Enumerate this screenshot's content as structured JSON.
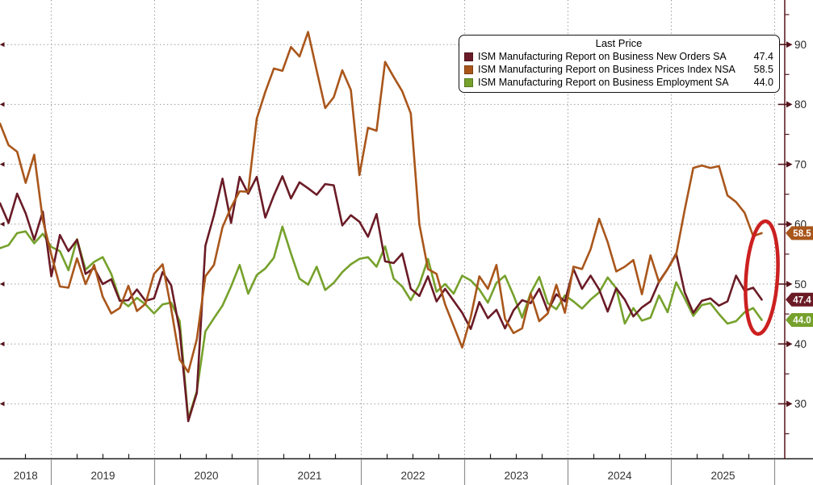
{
  "window": {
    "background": "#ffffff"
  },
  "legend": {
    "title": "Last Price",
    "items": [
      {
        "label": "ISM Manufacturing Report on Business New Orders SA",
        "value": "47.4",
        "color": "#6a1b26"
      },
      {
        "label": "ISM Manufacturing Report on Business Prices Index NSA",
        "value": "58.5",
        "color": "#a9561b"
      },
      {
        "label": "ISM Manufacturing Report on Business Employment SA",
        "value": "44.0",
        "color": "#76a12c"
      }
    ]
  },
  "y_axis": {
    "side": "right",
    "ticks": [
      90,
      80,
      70,
      60,
      50,
      40,
      30
    ],
    "minor_step": 5,
    "spine_color": "#55141c",
    "label_color": "#262626"
  },
  "x_axis": {
    "year_labels": [
      "2018",
      "2019",
      "2020",
      "2021",
      "2022",
      "2023",
      "2024",
      "2025"
    ],
    "minor_ticks": "quarterly",
    "label_color": "#333333"
  },
  "annotation": {
    "shape": "ellipse",
    "color": "#cc2020",
    "highlights": "latest data points"
  },
  "chart_data": {
    "type": "line",
    "frequency": "monthly",
    "x_start": "2018-06",
    "x_end": "2025-11",
    "ylim": [
      21,
      97
    ],
    "grid": "dotted",
    "legend_position": "top-right",
    "title": "Last Price",
    "series": [
      {
        "name": "ISM Manufacturing Report on Business New Orders SA",
        "color": "#6a1b26",
        "last_price": 47.4,
        "values": [
          63.5,
          60.2,
          65.1,
          61.8,
          57.4,
          62.1,
          51.3,
          58.2,
          55.5,
          57.4,
          51.7,
          52.7,
          50.0,
          50.8,
          47.2,
          47.3,
          49.1,
          47.2,
          47.6,
          52.0,
          49.8,
          42.2,
          27.1,
          31.8,
          56.4,
          61.5,
          67.6,
          60.2,
          67.9,
          65.1,
          67.9,
          61.1,
          64.8,
          68.0,
          64.3,
          67.0,
          66.0,
          64.9,
          66.7,
          66.5,
          59.8,
          61.5,
          60.4,
          57.9,
          61.7,
          53.8,
          53.5,
          55.1,
          49.2,
          48.0,
          51.3,
          47.1,
          49.2,
          47.2,
          45.2,
          42.5,
          47.0,
          44.3,
          45.7,
          42.6,
          45.6,
          47.3,
          46.8,
          49.2,
          45.5,
          48.3,
          47.1,
          52.5,
          49.2,
          51.4,
          49.1,
          45.4,
          49.3,
          47.4,
          44.6,
          46.1,
          47.1,
          50.4,
          52.5,
          55.1,
          48.6,
          45.2,
          47.2,
          47.6,
          46.4,
          47.1,
          51.4,
          48.9,
          49.4,
          47.4
        ]
      },
      {
        "name": "ISM Manufacturing Report on Business Prices Index NSA",
        "color": "#a9561b",
        "last_price": 58.5,
        "values": [
          76.8,
          73.2,
          72.1,
          66.9,
          71.6,
          60.7,
          54.9,
          49.6,
          49.4,
          54.3,
          50.0,
          53.2,
          47.9,
          45.1,
          46.0,
          49.7,
          45.5,
          46.7,
          51.7,
          53.3,
          45.9,
          37.4,
          35.3,
          40.8,
          51.3,
          53.2,
          59.5,
          62.8,
          65.5,
          65.4,
          77.6,
          82.1,
          86.0,
          85.6,
          89.6,
          88.0,
          92.1,
          85.7,
          79.4,
          81.2,
          85.7,
          82.4,
          68.2,
          76.1,
          75.6,
          87.1,
          84.6,
          82.2,
          78.5,
          60.0,
          52.5,
          51.7,
          46.6,
          43.0,
          39.4,
          44.5,
          51.3,
          49.2,
          53.2,
          44.2,
          41.8,
          42.6,
          48.4,
          43.8,
          45.1,
          49.9,
          45.2,
          52.9,
          52.5,
          55.8,
          60.9,
          57.0,
          52.1,
          52.9,
          54.0,
          48.3,
          54.8,
          50.3,
          52.5,
          54.9,
          62.4,
          69.4,
          69.8,
          69.4,
          69.7,
          64.8,
          63.7,
          61.9,
          58.0,
          58.5
        ]
      },
      {
        "name": "ISM Manufacturing Report on Business Employment SA",
        "color": "#76a12c",
        "last_price": 44.0,
        "values": [
          56.0,
          56.5,
          58.5,
          58.8,
          56.8,
          58.4,
          56.2,
          55.5,
          52.3,
          57.5,
          52.4,
          53.7,
          54.5,
          51.7,
          47.4,
          46.3,
          47.7,
          46.6,
          45.1,
          46.6,
          46.9,
          43.8,
          27.5,
          32.1,
          42.1,
          44.3,
          46.4,
          49.6,
          53.2,
          48.4,
          51.5,
          52.6,
          54.4,
          59.6,
          55.1,
          50.9,
          49.9,
          52.9,
          49.0,
          50.2,
          52.0,
          53.3,
          54.2,
          54.5,
          52.9,
          56.3,
          50.9,
          49.6,
          47.3,
          49.9,
          54.2,
          48.7,
          50.0,
          48.4,
          51.4,
          50.6,
          49.1,
          46.9,
          50.2,
          51.4,
          48.1,
          44.4,
          48.5,
          51.2,
          46.8,
          45.8,
          48.1,
          47.1,
          45.9,
          47.4,
          48.6,
          51.1,
          49.3,
          43.4,
          46.0,
          43.9,
          44.4,
          48.1,
          45.3,
          50.3,
          47.6,
          44.7,
          46.5,
          46.8,
          45.0,
          43.4,
          43.8,
          45.3,
          46.0,
          44.0
        ]
      }
    ]
  }
}
